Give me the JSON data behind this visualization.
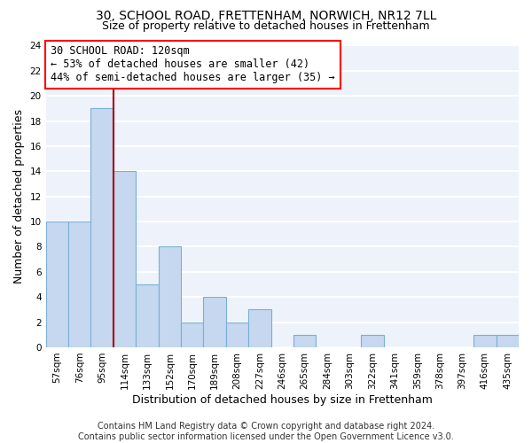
{
  "title_line1": "30, SCHOOL ROAD, FRETTENHAM, NORWICH, NR12 7LL",
  "title_line2": "Size of property relative to detached houses in Frettenham",
  "xlabel": "Distribution of detached houses by size in Frettenham",
  "ylabel": "Number of detached properties",
  "categories": [
    "57sqm",
    "76sqm",
    "95sqm",
    "114sqm",
    "133sqm",
    "152sqm",
    "170sqm",
    "189sqm",
    "208sqm",
    "227sqm",
    "246sqm",
    "265sqm",
    "284sqm",
    "303sqm",
    "322sqm",
    "341sqm",
    "359sqm",
    "378sqm",
    "397sqm",
    "416sqm",
    "435sqm"
  ],
  "values": [
    10,
    10,
    19,
    14,
    5,
    8,
    2,
    4,
    2,
    3,
    0,
    1,
    0,
    0,
    1,
    0,
    0,
    0,
    0,
    1,
    1
  ],
  "bar_color": "#c5d8f0",
  "bar_edgecolor": "#7bafd4",
  "vline_x": 2.5,
  "vline_color": "#aa0000",
  "annotation_text": "30 SCHOOL ROAD: 120sqm\n← 53% of detached houses are smaller (42)\n44% of semi-detached houses are larger (35) →",
  "annotation_box_color": "white",
  "annotation_box_edgecolor": "red",
  "ylim": [
    0,
    24
  ],
  "yticks": [
    0,
    2,
    4,
    6,
    8,
    10,
    12,
    14,
    16,
    18,
    20,
    22,
    24
  ],
  "footnote": "Contains HM Land Registry data © Crown copyright and database right 2024.\nContains public sector information licensed under the Open Government Licence v3.0.",
  "background_color": "#eef2fa",
  "grid_color": "white",
  "title1_fontsize": 10,
  "title2_fontsize": 9,
  "tick_fontsize": 7.5,
  "ylabel_fontsize": 9,
  "xlabel_fontsize": 9,
  "footnote_fontsize": 7,
  "annotation_fontsize": 8.5
}
